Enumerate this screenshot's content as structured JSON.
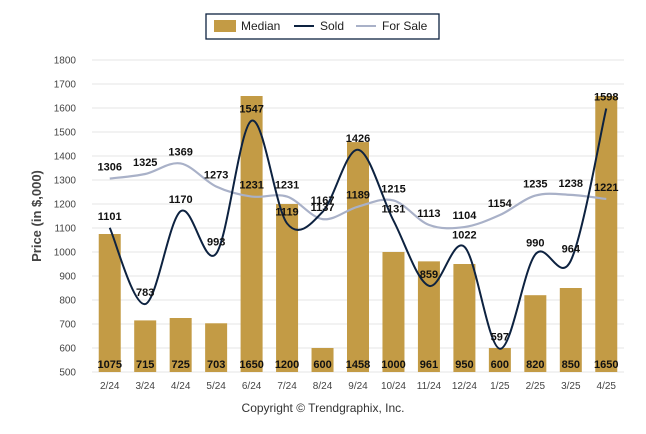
{
  "copyright": "Copyright © Trendgraphix, Inc.",
  "chart_data": {
    "type": "bar",
    "ylabel": "Price (in $,000)",
    "ylim": [
      500,
      1800
    ],
    "yticks": [
      500,
      600,
      700,
      800,
      900,
      1000,
      1100,
      1200,
      1300,
      1400,
      1500,
      1600,
      1700,
      1800
    ],
    "grid": true,
    "legend_position": "top-center",
    "categories": [
      "2/24",
      "3/24",
      "4/24",
      "5/24",
      "6/24",
      "7/24",
      "8/24",
      "9/24",
      "10/24",
      "11/24",
      "12/24",
      "1/25",
      "2/25",
      "3/25",
      "4/25"
    ],
    "series": [
      {
        "name": "Median",
        "type": "bar",
        "color": "#c39b45",
        "values": [
          1075,
          715,
          725,
          703,
          1650,
          1200,
          600,
          1458,
          1000,
          961,
          950,
          600,
          820,
          850,
          1650
        ]
      },
      {
        "name": "Sold",
        "type": "line",
        "color": "#0d2240",
        "values": [
          1101,
          783,
          1170,
          993,
          1547,
          1119,
          1167,
          1426,
          1131,
          859,
          1022,
          597,
          990,
          964,
          1598
        ]
      },
      {
        "name": "For Sale",
        "type": "line",
        "color": "#a9b1c8",
        "values": [
          1306,
          1325,
          1369,
          1273,
          1231,
          1231,
          1137,
          1189,
          1215,
          1113,
          1104,
          1154,
          1235,
          1238,
          1221
        ]
      }
    ]
  }
}
